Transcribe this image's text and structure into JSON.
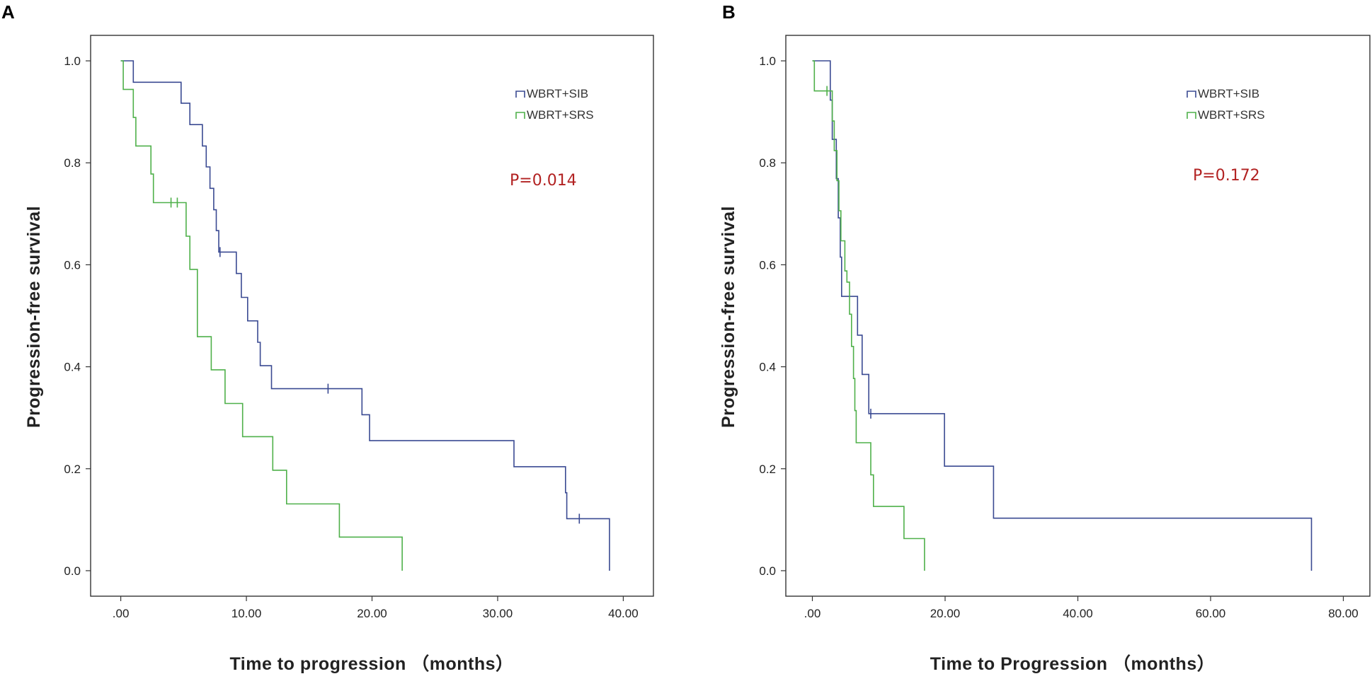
{
  "colors": {
    "series_blue": "#3a4a92",
    "series_green": "#4fb04a",
    "p_value_text": "#b22222",
    "axis": "#333333"
  },
  "chart_data": [
    {
      "panel": "A",
      "type": "line",
      "subtype": "kaplan-meier step",
      "xlabel": "Time to progression （months）",
      "ylabel": "Progression-free survival",
      "xlim": [
        -2.4,
        42.4
      ],
      "ylim": [
        -0.05,
        1.05
      ],
      "xticks": [
        0,
        10,
        20,
        30,
        40
      ],
      "xtick_labels": [
        ".00",
        "10.00",
        "20.00",
        "30.00",
        "40.00"
      ],
      "yticks": [
        0.0,
        0.2,
        0.4,
        0.6,
        0.8,
        1.0
      ],
      "ytick_labels": [
        "0.0",
        "0.2",
        "0.4",
        "0.6",
        "0.8",
        "1.0"
      ],
      "annotation": "P=0.014",
      "legend_position": "top-right",
      "series": [
        {
          "name": "WBRT+SIB",
          "color_key": "series_blue",
          "points": [
            [
              0,
              1.0
            ],
            [
              1.0,
              1.0
            ],
            [
              1.0,
              0.958
            ],
            [
              4.8,
              0.958
            ],
            [
              4.8,
              0.917
            ],
            [
              5.5,
              0.917
            ],
            [
              5.5,
              0.875
            ],
            [
              6.5,
              0.875
            ],
            [
              6.5,
              0.833
            ],
            [
              6.8,
              0.833
            ],
            [
              6.8,
              0.792
            ],
            [
              7.1,
              0.792
            ],
            [
              7.1,
              0.75
            ],
            [
              7.4,
              0.75
            ],
            [
              7.4,
              0.708
            ],
            [
              7.6,
              0.708
            ],
            [
              7.6,
              0.667
            ],
            [
              7.8,
              0.667
            ],
            [
              7.8,
              0.625
            ],
            [
              9.2,
              0.625
            ],
            [
              9.2,
              0.583
            ],
            [
              9.6,
              0.583
            ],
            [
              9.6,
              0.536
            ],
            [
              10.1,
              0.536
            ],
            [
              10.1,
              0.49
            ],
            [
              10.9,
              0.49
            ],
            [
              10.9,
              0.448
            ],
            [
              11.1,
              0.448
            ],
            [
              11.1,
              0.402
            ],
            [
              12.0,
              0.402
            ],
            [
              12.0,
              0.357
            ],
            [
              19.2,
              0.357
            ],
            [
              19.2,
              0.306
            ],
            [
              19.8,
              0.306
            ],
            [
              19.8,
              0.255
            ],
            [
              31.3,
              0.255
            ],
            [
              31.3,
              0.204
            ],
            [
              35.4,
              0.204
            ],
            [
              35.4,
              0.153
            ],
            [
              35.5,
              0.153
            ],
            [
              35.5,
              0.102
            ],
            [
              38.9,
              0.102
            ],
            [
              38.9,
              0.0
            ]
          ],
          "censored": [
            [
              7.9,
              0.625
            ],
            [
              16.5,
              0.357
            ],
            [
              36.5,
              0.102
            ]
          ]
        },
        {
          "name": "WBRT+SRS",
          "color_key": "series_green",
          "points": [
            [
              0,
              1.0
            ],
            [
              0.2,
              1.0
            ],
            [
              0.2,
              0.944
            ],
            [
              1.0,
              0.944
            ],
            [
              1.0,
              0.889
            ],
            [
              1.2,
              0.889
            ],
            [
              1.2,
              0.833
            ],
            [
              2.4,
              0.833
            ],
            [
              2.4,
              0.778
            ],
            [
              2.6,
              0.778
            ],
            [
              2.6,
              0.722
            ],
            [
              5.2,
              0.722
            ],
            [
              5.2,
              0.656
            ],
            [
              5.5,
              0.656
            ],
            [
              5.5,
              0.591
            ],
            [
              6.1,
              0.591
            ],
            [
              6.1,
              0.459
            ],
            [
              7.2,
              0.459
            ],
            [
              7.2,
              0.394
            ],
            [
              8.3,
              0.394
            ],
            [
              8.3,
              0.328
            ],
            [
              9.7,
              0.328
            ],
            [
              9.7,
              0.263
            ],
            [
              12.1,
              0.263
            ],
            [
              12.1,
              0.197
            ],
            [
              13.2,
              0.197
            ],
            [
              13.2,
              0.131
            ],
            [
              17.4,
              0.131
            ],
            [
              17.4,
              0.066
            ],
            [
              22.4,
              0.066
            ],
            [
              22.4,
              0.0
            ]
          ],
          "censored": [
            [
              4.0,
              0.722
            ],
            [
              4.5,
              0.722
            ]
          ]
        }
      ]
    },
    {
      "panel": "B",
      "type": "line",
      "subtype": "kaplan-meier step",
      "xlabel": "Time to Progression （months）",
      "ylabel": "Progression-free survival",
      "xlim": [
        -4.0,
        84.0
      ],
      "ylim": [
        -0.05,
        1.05
      ],
      "xticks": [
        0,
        20,
        40,
        60,
        80
      ],
      "xtick_labels": [
        ".00",
        "20.00",
        "40.00",
        "60.00",
        "80.00"
      ],
      "yticks": [
        0.0,
        0.2,
        0.4,
        0.6,
        0.8,
        1.0
      ],
      "ytick_labels": [
        "0.0",
        "0.2",
        "0.4",
        "0.6",
        "0.8",
        "1.0"
      ],
      "annotation": "P=0.172",
      "legend_position": "top-right",
      "series": [
        {
          "name": "WBRT+SIB",
          "color_key": "series_blue",
          "points": [
            [
              0,
              1.0
            ],
            [
              2.7,
              1.0
            ],
            [
              2.7,
              0.923
            ],
            [
              3.0,
              0.923
            ],
            [
              3.0,
              0.846
            ],
            [
              3.6,
              0.846
            ],
            [
              3.6,
              0.769
            ],
            [
              3.9,
              0.769
            ],
            [
              3.9,
              0.692
            ],
            [
              4.2,
              0.692
            ],
            [
              4.2,
              0.615
            ],
            [
              4.4,
              0.615
            ],
            [
              4.4,
              0.538
            ],
            [
              6.8,
              0.538
            ],
            [
              6.8,
              0.462
            ],
            [
              7.5,
              0.462
            ],
            [
              7.5,
              0.385
            ],
            [
              8.5,
              0.385
            ],
            [
              8.5,
              0.308
            ],
            [
              19.9,
              0.308
            ],
            [
              19.9,
              0.205
            ],
            [
              27.3,
              0.205
            ],
            [
              27.3,
              0.103
            ],
            [
              75.2,
              0.103
            ],
            [
              75.2,
              0.0
            ]
          ],
          "censored": [
            [
              8.8,
              0.308
            ]
          ]
        },
        {
          "name": "WBRT+SRS",
          "color_key": "series_green",
          "points": [
            [
              0,
              1.0
            ],
            [
              0.3,
              1.0
            ],
            [
              0.3,
              0.941
            ],
            [
              3.0,
              0.941
            ],
            [
              3.0,
              0.882
            ],
            [
              3.3,
              0.882
            ],
            [
              3.3,
              0.824
            ],
            [
              3.7,
              0.824
            ],
            [
              3.7,
              0.765
            ],
            [
              4.0,
              0.765
            ],
            [
              4.0,
              0.706
            ],
            [
              4.3,
              0.706
            ],
            [
              4.3,
              0.647
            ],
            [
              4.9,
              0.647
            ],
            [
              4.9,
              0.588
            ],
            [
              5.2,
              0.588
            ],
            [
              5.2,
              0.566
            ],
            [
              5.6,
              0.566
            ],
            [
              5.6,
              0.503
            ],
            [
              5.9,
              0.503
            ],
            [
              5.9,
              0.44
            ],
            [
              6.2,
              0.44
            ],
            [
              6.2,
              0.377
            ],
            [
              6.4,
              0.377
            ],
            [
              6.4,
              0.314
            ],
            [
              6.6,
              0.314
            ],
            [
              6.6,
              0.251
            ],
            [
              8.8,
              0.251
            ],
            [
              8.8,
              0.188
            ],
            [
              9.2,
              0.188
            ],
            [
              9.2,
              0.126
            ],
            [
              13.8,
              0.126
            ],
            [
              13.8,
              0.063
            ],
            [
              16.9,
              0.063
            ],
            [
              16.9,
              0.0
            ]
          ],
          "censored": [
            [
              2.2,
              0.941
            ]
          ]
        }
      ]
    }
  ]
}
